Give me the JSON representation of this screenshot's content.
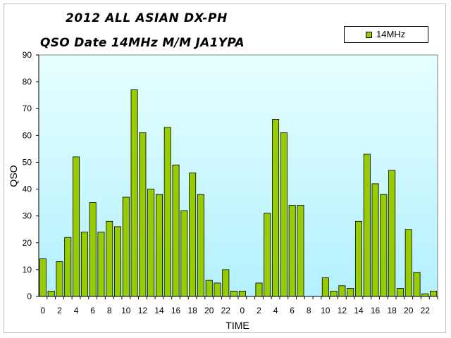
{
  "chart_data": {
    "type": "bar",
    "title": "2012 ALL ASIAN DX-PH",
    "subtitle": "QSO Date 14MHz M/M JA1YPA",
    "xlabel": "TIME",
    "ylabel": "QSO",
    "ylim": [
      0,
      90
    ],
    "yticks": [
      0,
      10,
      20,
      30,
      40,
      50,
      60,
      70,
      80,
      90
    ],
    "grid": false,
    "legend": "top-right",
    "colors": {
      "bar": "#99cc00",
      "bar_edge": "#000000",
      "plot_top": "#e6ffff",
      "plot_bottom": "#b3f0ff"
    },
    "categories": [
      "0",
      "1",
      "2",
      "3",
      "4",
      "5",
      "6",
      "7",
      "8",
      "9",
      "10",
      "11",
      "12",
      "13",
      "14",
      "15",
      "16",
      "17",
      "18",
      "19",
      "20",
      "21",
      "22",
      "23",
      "0",
      "1",
      "2",
      "3",
      "4",
      "5",
      "6",
      "7",
      "8",
      "9",
      "10",
      "11",
      "12",
      "13",
      "14",
      "15",
      "16",
      "17",
      "18",
      "19",
      "20",
      "21",
      "22",
      "23"
    ],
    "series": [
      {
        "name": "14MHz",
        "values": [
          14,
          2,
          13,
          22,
          52,
          24,
          35,
          24,
          28,
          26,
          37,
          77,
          61,
          40,
          38,
          63,
          49,
          32,
          46,
          38,
          6,
          5,
          10,
          2,
          2,
          0,
          5,
          31,
          66,
          61,
          34,
          34,
          0,
          0,
          7,
          2,
          4,
          3,
          28,
          53,
          42,
          38,
          47,
          3,
          25,
          9,
          1,
          2
        ]
      }
    ]
  }
}
